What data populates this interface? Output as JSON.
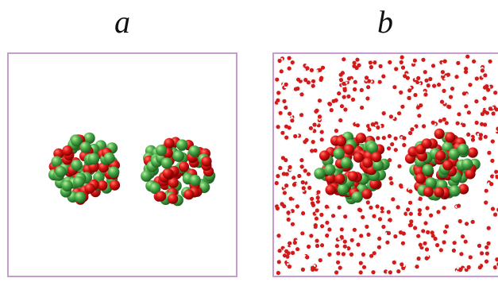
{
  "panels": [
    {
      "id": "a",
      "label": "a",
      "solvent": false
    },
    {
      "id": "b",
      "label": "b",
      "solvent": true
    }
  ],
  "colors": {
    "frame": "#c79bd0",
    "anion_atom": "#e01818",
    "cation_atom": "#4cae4c",
    "water_oxygen": "#d21a1a",
    "water_hydrogen": "#f2f2f2"
  },
  "atom_names": [
    "red-atom",
    "green-atom"
  ]
}
